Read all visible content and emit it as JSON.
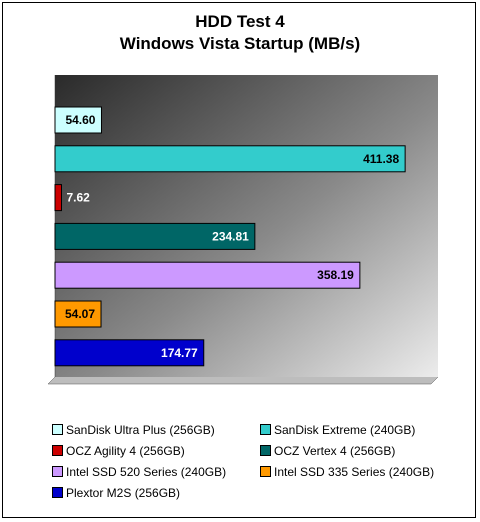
{
  "chart_data": {
    "type": "bar",
    "orientation": "horizontal",
    "title": "HDD Test 4",
    "subtitle": "Windows Vista  Startup (MB/s)",
    "xlim": [
      0,
      450
    ],
    "grid": false,
    "legend_position": "bottom",
    "series": [
      {
        "name": "SanDisk Ultra Plus (256GB)",
        "value": 54.6,
        "label": "54.60",
        "color": "#ccffff",
        "label_color": "#000000"
      },
      {
        "name": "SanDisk Extreme (240GB)",
        "value": 411.38,
        "label": "411.38",
        "color": "#33cccc",
        "label_color": "#000000"
      },
      {
        "name": "OCZ Agility 4 (256GB)",
        "value": 7.62,
        "label": "7.62",
        "color": "#cc0000",
        "label_color": "#ffffff"
      },
      {
        "name": "OCZ Vertex 4 (256GB)",
        "value": 234.81,
        "label": "234.81",
        "color": "#006666",
        "label_color": "#ffffff"
      },
      {
        "name": "Intel SSD 520 Series (240GB)",
        "value": 358.19,
        "label": "358.19",
        "color": "#cc99ff",
        "label_color": "#000000"
      },
      {
        "name": "Intel SSD 335 Series (240GB)",
        "value": 54.07,
        "label": "54.07",
        "color": "#ff9900",
        "label_color": "#000000"
      },
      {
        "name": "Plextor M2S (256GB)",
        "value": 174.77,
        "label": "174.77",
        "color": "#0000cc",
        "label_color": "#ffffff"
      }
    ]
  }
}
